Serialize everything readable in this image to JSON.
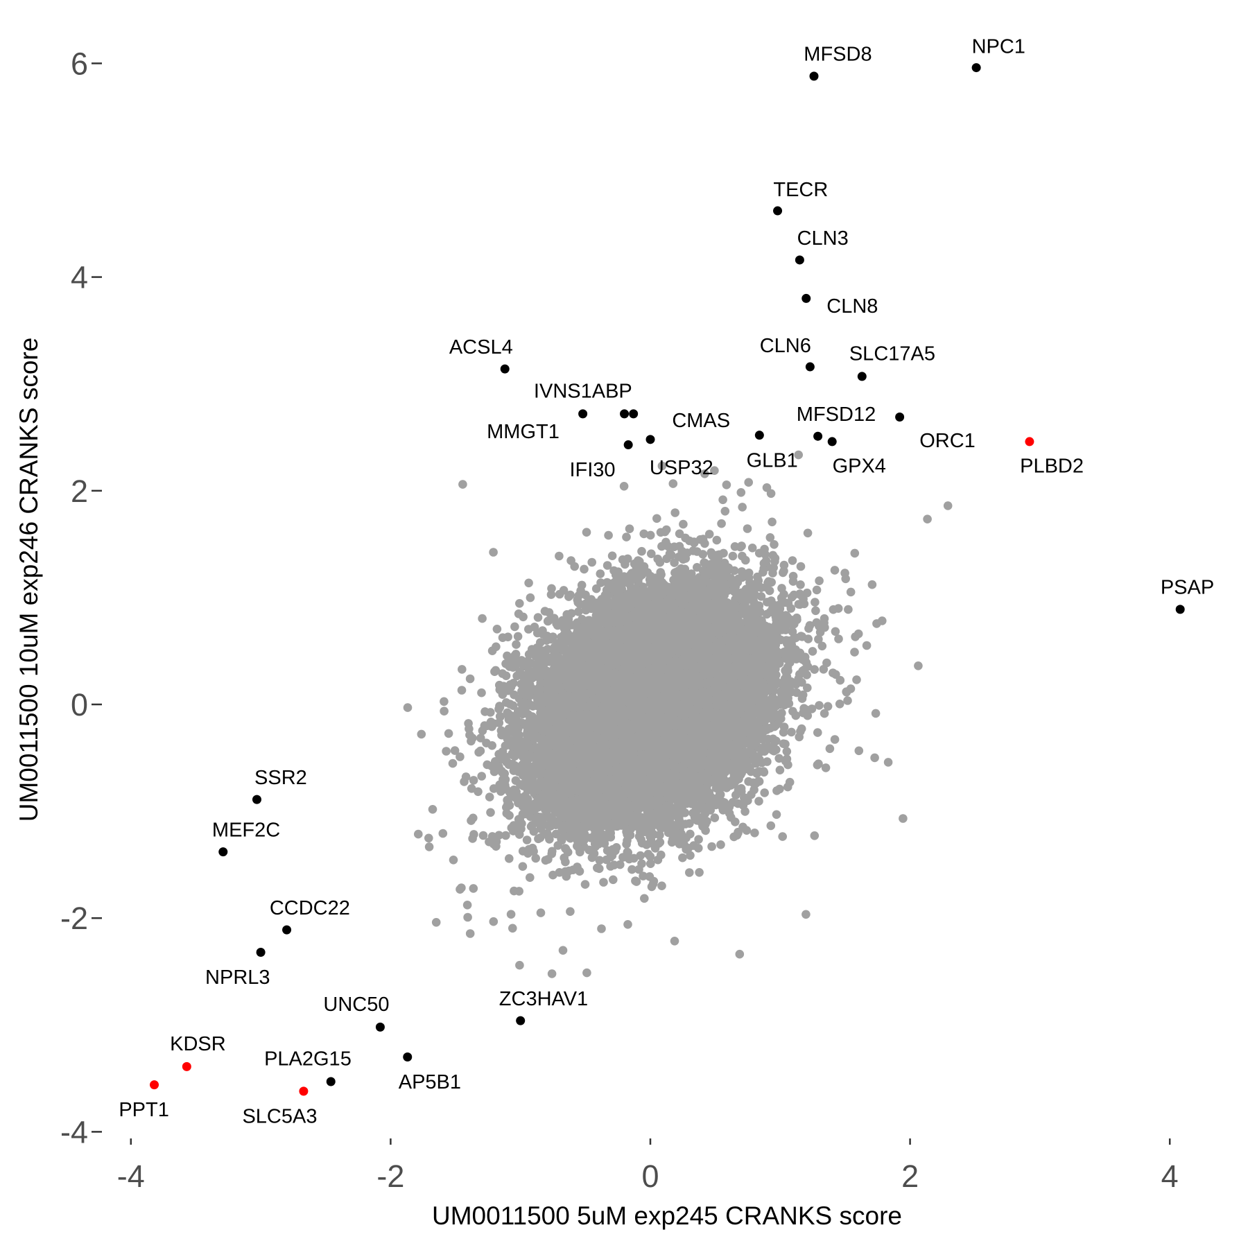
{
  "chart_data": {
    "type": "scatter",
    "title": "",
    "xlabel": "UM0011500 5uM exp245 CRANKS score",
    "ylabel": "UM0011500 10uM exp246 CRANKS score",
    "xlim": [
      -4.15,
      4.4
    ],
    "ylim": [
      -4.1,
      6.1
    ],
    "xticks": [
      -4,
      -2,
      0,
      2,
      4
    ],
    "yticks": [
      -4,
      -2,
      0,
      2,
      4,
      6
    ],
    "xtick_labels": [
      "-4",
      "-2",
      "0",
      "2",
      "4"
    ],
    "ytick_labels": [
      "-4",
      "-2",
      "0",
      "2",
      "4",
      "6"
    ],
    "grid": false,
    "colors": {
      "background": "#a0a0a0",
      "highlight": "#000000",
      "red": "#ff0000",
      "tick_text": "#4d4d4d"
    },
    "background_points": {
      "n": 17000,
      "sd_x": 0.42,
      "sd_y": 0.5,
      "correlation": 0.3,
      "seed": 7,
      "color": "#a0a0a0"
    },
    "labeled_points": [
      {
        "gene": "NPC1",
        "x": 2.51,
        "y": 5.96,
        "color": "#000000"
      },
      {
        "gene": "MFSD8",
        "x": 1.26,
        "y": 5.88,
        "color": "#000000"
      },
      {
        "gene": "TECR",
        "x": 0.98,
        "y": 4.62,
        "color": "#000000"
      },
      {
        "gene": "CLN3",
        "x": 1.15,
        "y": 4.16,
        "color": "#000000"
      },
      {
        "gene": "CLN8",
        "x": 1.2,
        "y": 3.8,
        "color": "#000000"
      },
      {
        "gene": "CLN6",
        "x": 1.23,
        "y": 3.16,
        "color": "#000000"
      },
      {
        "gene": "SLC17A5",
        "x": 1.63,
        "y": 3.07,
        "color": "#000000"
      },
      {
        "gene": "ACSL4",
        "x": -1.12,
        "y": 3.14,
        "color": "#000000"
      },
      {
        "gene": "IVNS1ABP",
        "x": -0.2,
        "y": 2.72,
        "color": "#000000"
      },
      {
        "gene": "MMGT1",
        "x": -0.52,
        "y": 2.72,
        "color": "#000000"
      },
      {
        "gene": "CMAS",
        "x": -0.13,
        "y": 2.72,
        "color": "#000000"
      },
      {
        "gene": "IFI30",
        "x": -0.17,
        "y": 2.43,
        "color": "#000000"
      },
      {
        "gene": "USP32",
        "x": 0.0,
        "y": 2.48,
        "color": "#000000"
      },
      {
        "gene": "GLB1",
        "x": 0.84,
        "y": 2.52,
        "color": "#000000"
      },
      {
        "gene": "MFSD12",
        "x": 1.29,
        "y": 2.51,
        "color": "#000000"
      },
      {
        "gene": "GPX4",
        "x": 1.4,
        "y": 2.46,
        "color": "#000000"
      },
      {
        "gene": "ORC1",
        "x": 1.92,
        "y": 2.69,
        "color": "#000000"
      },
      {
        "gene": "PLBD2",
        "x": 2.92,
        "y": 2.46,
        "color": "#ff0000"
      },
      {
        "gene": "PSAP",
        "x": 4.08,
        "y": 0.89,
        "color": "#000000"
      },
      {
        "gene": "SSR2",
        "x": -3.03,
        "y": -0.89,
        "color": "#000000"
      },
      {
        "gene": "MEF2C",
        "x": -3.29,
        "y": -1.38,
        "color": "#000000"
      },
      {
        "gene": "CCDC22",
        "x": -2.8,
        "y": -2.11,
        "color": "#000000"
      },
      {
        "gene": "NPRL3",
        "x": -3.0,
        "y": -2.32,
        "color": "#000000"
      },
      {
        "gene": "UNC50",
        "x": -2.08,
        "y": -3.02,
        "color": "#000000"
      },
      {
        "gene": "ZC3HAV1",
        "x": -1.0,
        "y": -2.96,
        "color": "#000000"
      },
      {
        "gene": "AP5B1",
        "x": -1.87,
        "y": -3.3,
        "color": "#000000"
      },
      {
        "gene": "PLA2G15",
        "x": -2.46,
        "y": -3.53,
        "color": "#000000"
      },
      {
        "gene": "SLC5A3",
        "x": -2.67,
        "y": -3.62,
        "color": "#ff0000"
      },
      {
        "gene": "KDSR",
        "x": -3.57,
        "y": -3.39,
        "color": "#ff0000"
      },
      {
        "gene": "PPT1",
        "x": -3.82,
        "y": -3.56,
        "color": "#ff0000"
      }
    ]
  }
}
